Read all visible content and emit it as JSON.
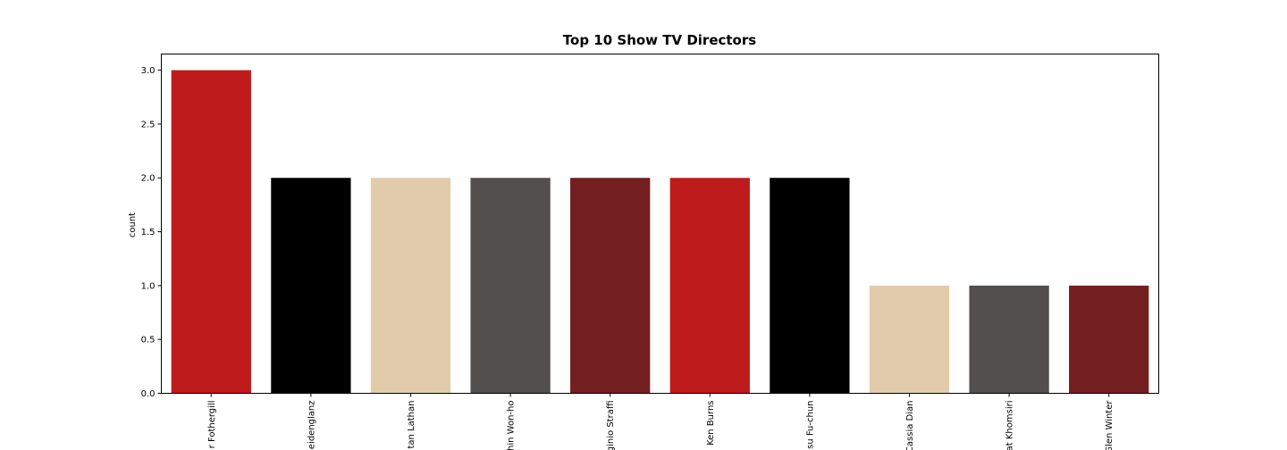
{
  "chart_data": {
    "type": "bar",
    "title": "Top 10 Show TV Directors",
    "xlabel": "",
    "ylabel": "count",
    "ylim": [
      0,
      3.15
    ],
    "yticks": [
      "0.0",
      "0.5",
      "1.0",
      "1.5",
      "2.0",
      "2.5",
      "3.0"
    ],
    "categories": [
      "r Fothergill",
      "eidenglanz",
      "tan Lathan",
      "hin Won-ho",
      "ginio Straffi",
      "Ken Burns",
      "su Fu-chun",
      "Cassia Dian",
      "at Khomsiri",
      "Glen Winter"
    ],
    "values": [
      3,
      2,
      2,
      2,
      2,
      2,
      2,
      1,
      1,
      1
    ],
    "colors": [
      "#be1c1c",
      "#000000",
      "#e2cbab",
      "#544f4f",
      "#741f1f",
      "#be1c1c",
      "#000000",
      "#e2cbab",
      "#544f4f",
      "#741f1f"
    ],
    "grid": false,
    "legend": "none"
  }
}
